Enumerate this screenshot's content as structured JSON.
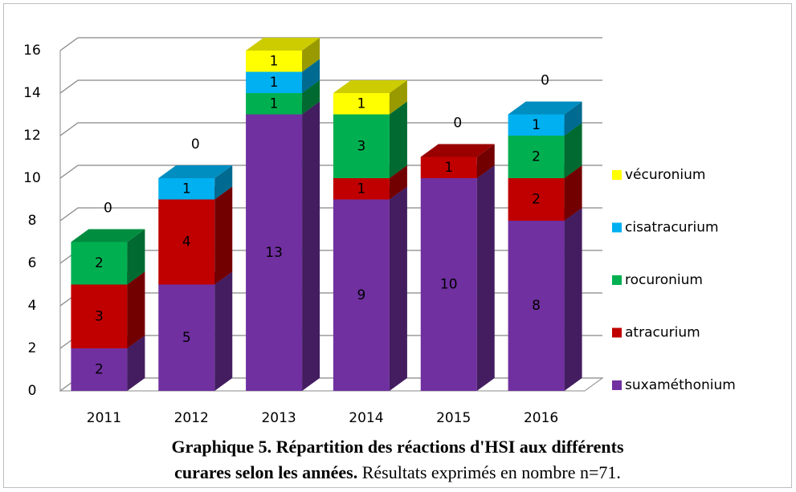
{
  "chart_data": {
    "type": "bar3d_stacked",
    "categories": [
      "2011",
      "2012",
      "2013",
      "2014",
      "2015",
      "2016"
    ],
    "series": [
      {
        "name": "suxaméthonium",
        "color": "#7030a0",
        "values": [
          2,
          5,
          13,
          9,
          10,
          8
        ]
      },
      {
        "name": "atracurium",
        "color": "#c00000",
        "values": [
          3,
          4,
          0,
          1,
          1,
          2
        ]
      },
      {
        "name": "rocuronium",
        "color": "#00b050",
        "values": [
          2,
          0,
          1,
          3,
          0,
          2
        ]
      },
      {
        "name": "cisatracurium",
        "color": "#00b0f0",
        "values": [
          0,
          1,
          1,
          0,
          0,
          1
        ]
      },
      {
        "name": "vécuronium",
        "color": "#ffff00",
        "values": [
          0,
          0,
          1,
          1,
          0,
          0
        ]
      }
    ],
    "ylim": [
      0,
      16
    ],
    "yticks": [
      0,
      2,
      4,
      6,
      8,
      10,
      12,
      14,
      16
    ],
    "grid": true,
    "legend": "right",
    "caption_bold": [
      "Graphique 5. Répartition des réactions d'HSI aux différents",
      "curares selon les années."
    ],
    "caption_note": "Résultats exprimés en nombre n=71."
  }
}
